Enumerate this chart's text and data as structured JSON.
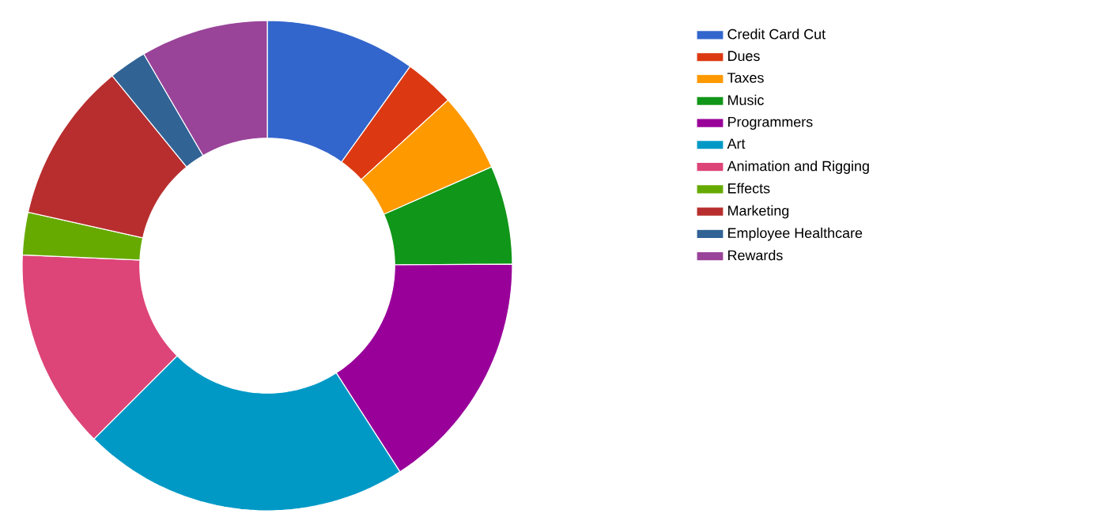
{
  "chart_data": {
    "type": "donut",
    "categories": [
      "Credit Card Cut",
      "Dues",
      "Taxes",
      "Music",
      "Programmers",
      "Art",
      "Animation and Rigging",
      "Effects",
      "Marketing",
      "Employee Healthcare",
      "Rewards"
    ],
    "values": [
      9.9,
      3.3,
      5.2,
      6.5,
      16.0,
      21.6,
      13.2,
      2.8,
      10.6,
      2.5,
      8.4
    ],
    "colors": [
      "#3366cc",
      "#dc3912",
      "#ff9900",
      "#109618",
      "#990099",
      "#0099c6",
      "#dd4477",
      "#66aa00",
      "#b82e2e",
      "#316395",
      "#994499"
    ],
    "legend": "right"
  }
}
